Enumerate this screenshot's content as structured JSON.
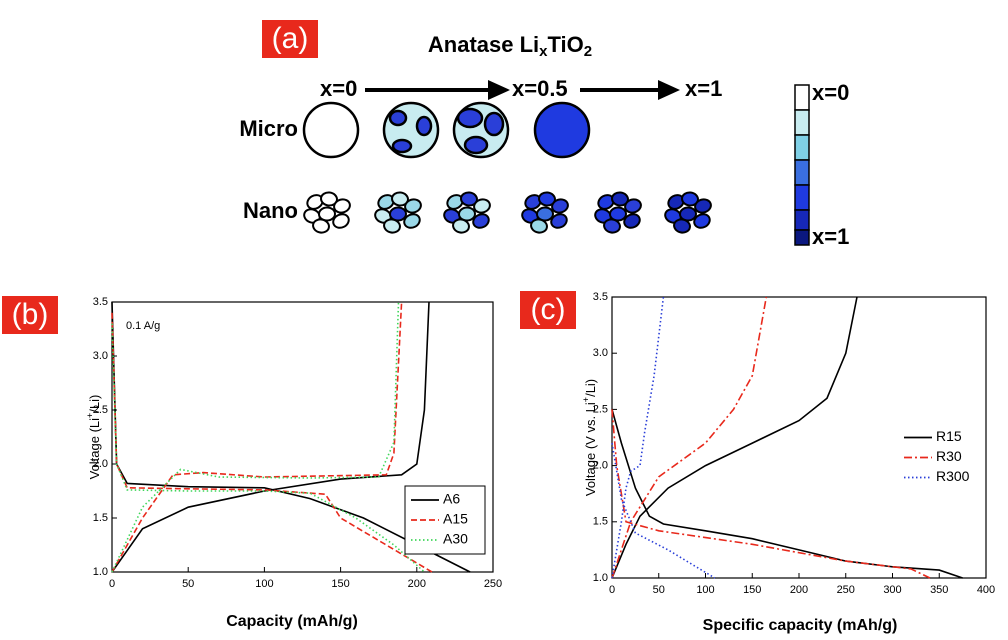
{
  "panel_a": {
    "label": "(a)",
    "title": [
      "Anatase Li",
      "x",
      "TiO",
      "2"
    ],
    "stages": [
      "x=0",
      "x=0.5",
      "x=1"
    ],
    "rows": [
      "Micro",
      "Nano"
    ],
    "colorbar": {
      "top": "x=0",
      "bottom": "x=1"
    }
  },
  "chart_data": [
    {
      "type": "line",
      "panel_label": "(b)",
      "annotation": "0.1 A/g",
      "ylabel": [
        "Voltage (Li",
        "+",
        "/Li)"
      ],
      "xlabel": "Capacity (mAh/g)",
      "xlim": [
        0,
        250
      ],
      "xticks": [
        0,
        50,
        100,
        150,
        200,
        250
      ],
      "ylim": [
        1.0,
        3.5
      ],
      "yticks": [
        {
          "value": 1,
          "label": "1.0"
        },
        1.5,
        {
          "value": 2,
          "label": "2.0"
        },
        2.5,
        {
          "value": 3,
          "label": "3.0"
        },
        3.5
      ],
      "legend": "lower right",
      "legend_frame": true,
      "series": [
        {
          "name": "A6",
          "color": "#000000",
          "dash": "solid",
          "x": [
            0,
            3,
            10,
            50,
            100,
            130,
            165,
            200,
            235,
            null,
            0,
            20,
            50,
            100,
            150,
            190,
            200,
            205,
            208
          ],
          "values": [
            3.5,
            2.0,
            1.82,
            1.79,
            1.78,
            1.68,
            1.5,
            1.25,
            1.0,
            null,
            1.0,
            1.4,
            1.6,
            1.75,
            1.86,
            1.9,
            2.0,
            2.5,
            3.5
          ]
        },
        {
          "name": "A15",
          "color": "#e8291c",
          "dash": "dashed",
          "x": [
            0,
            3,
            10,
            50,
            100,
            140,
            150,
            180,
            210,
            null,
            0,
            20,
            40,
            60,
            100,
            180,
            185,
            190
          ],
          "values": [
            3.4,
            2.0,
            1.78,
            1.77,
            1.76,
            1.72,
            1.5,
            1.25,
            1.0,
            null,
            1.0,
            1.5,
            1.9,
            1.92,
            1.88,
            1.9,
            2.1,
            3.5
          ]
        },
        {
          "name": "A30",
          "color": "#3fd65a",
          "dash": "dotted",
          "x": [
            0,
            3,
            10,
            50,
            100,
            130,
            160,
            185,
            205,
            null,
            0,
            20,
            45,
            70,
            130,
            175,
            185,
            188
          ],
          "values": [
            3.3,
            2.0,
            1.76,
            1.75,
            1.75,
            1.73,
            1.5,
            1.25,
            1.0,
            null,
            1.0,
            1.6,
            1.95,
            1.88,
            1.87,
            1.88,
            2.2,
            3.5
          ]
        }
      ]
    },
    {
      "type": "line",
      "panel_label": "(c)",
      "ylabel": [
        "Voltage (V vs. Li",
        "+",
        "/Li)"
      ],
      "xlabel": "Specific capacity (mAh/g)",
      "xlim": [
        0,
        400
      ],
      "xticks": [
        0,
        50,
        100,
        150,
        200,
        250,
        300,
        350,
        400
      ],
      "ylim": [
        1.0,
        3.5
      ],
      "yticks": [
        {
          "value": 1,
          "label": "1.0"
        },
        1.5,
        {
          "value": 2,
          "label": "2.0"
        },
        2.5,
        {
          "value": 3,
          "label": "3.0"
        },
        3.5
      ],
      "legend": "center right",
      "legend_frame": false,
      "series": [
        {
          "name": "R15",
          "color": "#000000",
          "dash": "solid",
          "x": [
            0,
            10,
            25,
            40,
            55,
            100,
            150,
            200,
            250,
            300,
            350,
            375,
            null,
            0,
            15,
            30,
            60,
            100,
            150,
            200,
            230,
            250,
            262
          ],
          "values": [
            2.5,
            2.2,
            1.8,
            1.55,
            1.48,
            1.42,
            1.35,
            1.25,
            1.15,
            1.1,
            1.07,
            1.0,
            null,
            1.0,
            1.3,
            1.55,
            1.8,
            2.0,
            2.2,
            2.4,
            2.6,
            3.0,
            3.5
          ]
        },
        {
          "name": "R30",
          "color": "#e8291c",
          "dash": "dashdot",
          "x": [
            0,
            5,
            15,
            50,
            150,
            250,
            320,
            340,
            null,
            0,
            20,
            50,
            100,
            130,
            150,
            165
          ],
          "values": [
            2.5,
            2.0,
            1.5,
            1.42,
            1.3,
            1.15,
            1.08,
            1.0,
            null,
            1.0,
            1.5,
            1.9,
            2.2,
            2.5,
            2.8,
            3.5
          ]
        },
        {
          "name": "R300",
          "color": "#2a3fd8",
          "dash": "dotted",
          "x": [
            0,
            10,
            25,
            60,
            90,
            110,
            null,
            0,
            10,
            15,
            20,
            30,
            35,
            45,
            55
          ],
          "values": [
            2.2,
            1.7,
            1.4,
            1.25,
            1.1,
            1.0,
            null,
            1.0,
            1.5,
            1.8,
            1.95,
            2.0,
            2.3,
            2.8,
            3.5
          ]
        }
      ]
    }
  ]
}
